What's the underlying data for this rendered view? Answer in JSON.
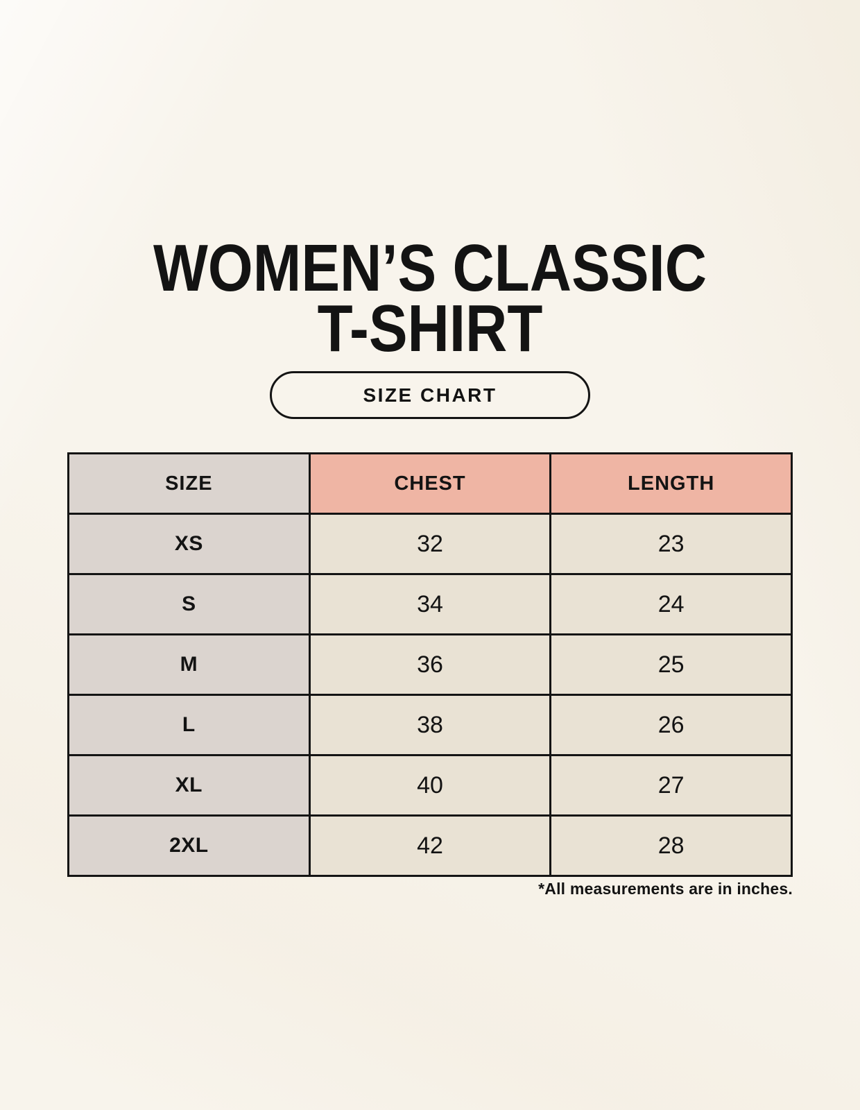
{
  "header": {
    "title_line1": "WOMEN’S CLASSIC",
    "title_line2": "T-SHIRT",
    "size_chart_button": "SIZE CHART"
  },
  "chart_data": {
    "type": "table",
    "title": "WOMEN’S CLASSIC T-SHIRT",
    "columns": [
      "SIZE",
      "CHEST",
      "LENGTH"
    ],
    "rows": [
      {
        "size": "XS",
        "chest": 32,
        "length": 23
      },
      {
        "size": "S",
        "chest": 34,
        "length": 24
      },
      {
        "size": "M",
        "chest": 36,
        "length": 25
      },
      {
        "size": "L",
        "chest": 38,
        "length": 26
      },
      {
        "size": "XL",
        "chest": 40,
        "length": 27
      },
      {
        "size": "2XL",
        "chest": 42,
        "length": 28
      }
    ],
    "units_note": "*All measurements are in inches."
  },
  "footnote": "*All measurements are in inches.",
  "colors": {
    "background": "#f8f4ec",
    "ink": "#131313",
    "table_border": "#141414",
    "size_column_bg": "#dbd4cf",
    "measure_header_bg": "#efb5a4",
    "data_cell_bg": "#e9e2d4"
  }
}
